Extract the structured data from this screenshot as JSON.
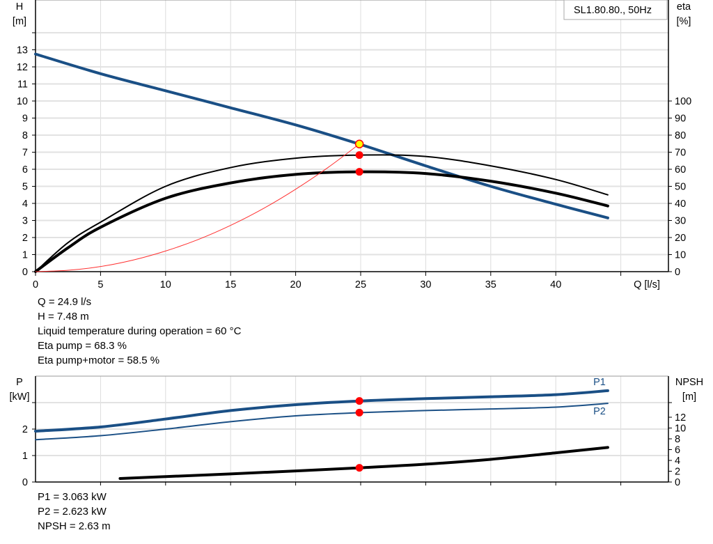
{
  "chart_data": [
    {
      "type": "line",
      "title_box": "SL1.80.80., 50Hz",
      "xlabel": "Q [l/s]",
      "ylabel_left": [
        "H",
        "[m]"
      ],
      "ylabel_right": [
        "eta",
        "[%]"
      ],
      "xlim": [
        0,
        45
      ],
      "ylim_left": [
        0,
        14
      ],
      "ylim_right": [
        0,
        140
      ],
      "x_ticks": [
        0,
        5,
        10,
        15,
        20,
        25,
        30,
        35,
        40
      ],
      "y_ticks_left": [
        0,
        1,
        2,
        3,
        4,
        5,
        6,
        7,
        8,
        9,
        10,
        11,
        12,
        13
      ],
      "y_ticks_right": [
        0,
        10,
        20,
        30,
        40,
        50,
        60,
        70,
        80,
        90,
        100
      ],
      "grid": true,
      "series": [
        {
          "key": "head",
          "color": "#1a4f85",
          "x": [
            0,
            5,
            10,
            15,
            20,
            25,
            30,
            35,
            40,
            44
          ],
          "y": [
            12.75,
            11.6,
            10.6,
            9.6,
            8.6,
            7.45,
            6.2,
            5.0,
            3.95,
            3.15
          ],
          "axis": "left"
        },
        {
          "key": "eta_pump",
          "color": "#000000",
          "x": [
            0,
            2.5,
            5,
            10,
            15,
            20,
            25,
            30,
            35,
            40,
            44
          ],
          "y": [
            0,
            17,
            29,
            50,
            61,
            66.5,
            68.3,
            67.5,
            62,
            54,
            45
          ],
          "axis": "right"
        },
        {
          "key": "eta_pump_motor",
          "color": "#000000",
          "x": [
            0,
            2.5,
            5,
            10,
            15,
            20,
            25,
            30,
            35,
            40,
            44
          ],
          "y": [
            0,
            14,
            26,
            43,
            52,
            57,
            58.5,
            57.5,
            53,
            46,
            38.5
          ],
          "axis": "right"
        },
        {
          "key": "system_curve",
          "color": "#ff3030",
          "x": [
            0,
            2.5,
            5,
            7.5,
            10,
            12.5,
            15,
            17.5,
            20,
            22.5,
            24.9
          ],
          "y": [
            0,
            0.08,
            0.3,
            0.68,
            1.21,
            1.88,
            2.71,
            3.69,
            4.83,
            6.11,
            7.48
          ],
          "axis": "left"
        }
      ],
      "operating_points": [
        {
          "key": "duty",
          "x": 24.9,
          "y": 7.48,
          "axis": "left",
          "color": "#ffff00"
        },
        {
          "key": "eta_pump",
          "x": 24.9,
          "y": 68.3,
          "axis": "right",
          "color": "#ff0000"
        },
        {
          "key": "eta_pump_motor",
          "x": 24.9,
          "y": 58.5,
          "axis": "right",
          "color": "#ff0000"
        }
      ]
    },
    {
      "type": "line",
      "ylabel_left": [
        "P",
        "[kW]"
      ],
      "ylabel_right": [
        "NPSH",
        "[m]"
      ],
      "xlim": [
        0,
        45
      ],
      "ylim_left": [
        0,
        4
      ],
      "ylim_right": [
        0,
        19.6
      ],
      "y_ticks_left": [
        0,
        1,
        2
      ],
      "y_ticks_right": [
        0,
        2,
        4,
        6,
        8,
        10,
        12
      ],
      "grid": true,
      "series": [
        {
          "key": "P1",
          "name": "P1",
          "color": "#1a4f85",
          "x": [
            0,
            5,
            10,
            15,
            20,
            25,
            30,
            35,
            40,
            44
          ],
          "y": [
            1.92,
            2.08,
            2.38,
            2.7,
            2.92,
            3.063,
            3.15,
            3.22,
            3.3,
            3.45
          ],
          "axis": "left"
        },
        {
          "key": "P2",
          "name": "P2",
          "color": "#1a4f85",
          "x": [
            0,
            5,
            10,
            15,
            20,
            25,
            30,
            35,
            40,
            44
          ],
          "y": [
            1.6,
            1.75,
            2.0,
            2.28,
            2.5,
            2.623,
            2.7,
            2.76,
            2.83,
            2.97
          ],
          "axis": "left"
        },
        {
          "key": "NPSH",
          "color": "#000000",
          "x": [
            6.5,
            10,
            15,
            20,
            25,
            30,
            35,
            40,
            44
          ],
          "y": [
            0.65,
            1.0,
            1.5,
            2.05,
            2.63,
            3.3,
            4.2,
            5.4,
            6.4
          ],
          "axis": "right"
        }
      ],
      "operating_points": [
        {
          "key": "P1",
          "x": 24.9,
          "y": 3.063,
          "axis": "left",
          "color": "#ff0000"
        },
        {
          "key": "P2",
          "x": 24.9,
          "y": 2.623,
          "axis": "left",
          "color": "#ff0000"
        },
        {
          "key": "NPSH",
          "x": 24.9,
          "y": 2.63,
          "axis": "right",
          "color": "#ff0000"
        }
      ]
    }
  ],
  "info_top": [
    "Q = 24.9 l/s",
    "H = 7.48 m",
    "Liquid temperature during operation = 60 °C",
    "Eta pump = 68.3 %",
    "Eta pump+motor = 58.5 %"
  ],
  "info_bottom": [
    "P1 = 3.063 kW",
    "P2 = 2.623 kW",
    "NPSH = 2.63 m"
  ]
}
